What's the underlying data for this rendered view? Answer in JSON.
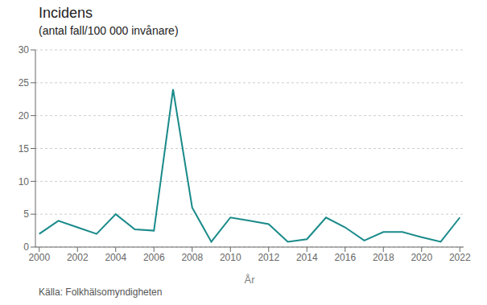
{
  "chart_data": {
    "type": "line",
    "title": "Incidens",
    "subtitle": "(antal fall/100 000 invånare)",
    "xlabel": "År",
    "annotation": "Källa: Folkhälsomyndigheten",
    "x": [
      2000,
      2001,
      2002,
      2003,
      2004,
      2005,
      2006,
      2007,
      2008,
      2009,
      2010,
      2011,
      2012,
      2013,
      2014,
      2015,
      2016,
      2017,
      2018,
      2019,
      2020,
      2021,
      2022
    ],
    "values": [
      2.0,
      4.0,
      3.0,
      2.0,
      5.0,
      2.7,
      2.5,
      24.0,
      6.0,
      0.8,
      4.5,
      4.0,
      3.5,
      0.8,
      1.2,
      4.5,
      3.0,
      1.0,
      2.3,
      2.3,
      1.5,
      0.8,
      4.5
    ],
    "color": "#1a8a8a",
    "xlim": [
      1999.8,
      2022.2
    ],
    "xticks": [
      2000,
      2002,
      2004,
      2006,
      2008,
      2010,
      2012,
      2014,
      2016,
      2018,
      2020,
      2022
    ],
    "ylim": [
      0,
      30
    ],
    "yticks": [
      0,
      5,
      10,
      15,
      20,
      25,
      30
    ],
    "grid": true
  }
}
